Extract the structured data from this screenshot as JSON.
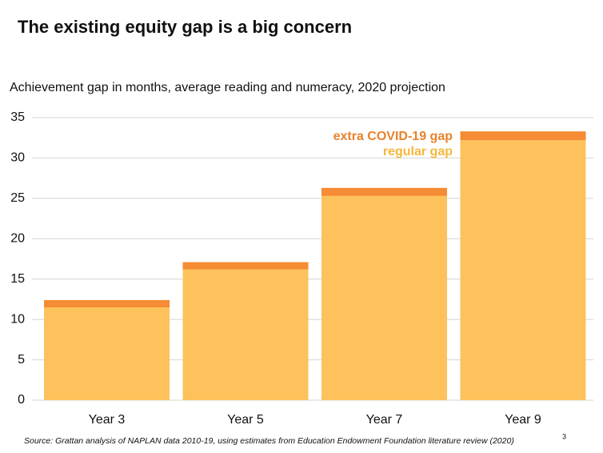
{
  "title": "The existing equity gap is a big concern",
  "chart_data": {
    "type": "stacked-bar",
    "subtitle": "Achievement gap in months, average reading and numeracy, 2020 projection",
    "categories": [
      "Year 3",
      "Year 5",
      "Year 7",
      "Year 9"
    ],
    "series": [
      {
        "name": "regular gap",
        "color": "#fdc25c",
        "values": [
          11.5,
          16.2,
          25.3,
          32.2
        ]
      },
      {
        "name": "extra COVID-19 gap",
        "color": "#f58b32",
        "values": [
          0.9,
          0.9,
          1.0,
          1.1
        ]
      }
    ],
    "ylim": [
      0,
      35
    ],
    "yticks": [
      0,
      5,
      10,
      15,
      20,
      25,
      30,
      35
    ],
    "grid": true
  },
  "source": "Source: Grattan analysis of NAPLAN data 2010-19, using estimates from Education Endowment Foundation literature review (2020)",
  "page_number": "3"
}
